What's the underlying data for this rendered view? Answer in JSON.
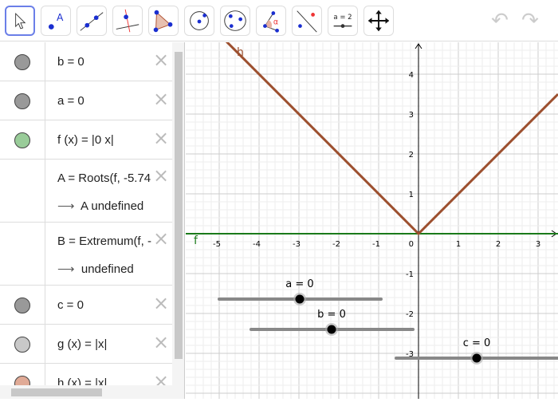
{
  "toolbar": {
    "tools": [
      {
        "name": "move-tool",
        "selected": true
      },
      {
        "name": "point-tool",
        "label": "A"
      },
      {
        "name": "line-tool"
      },
      {
        "name": "perpendicular-line-tool"
      },
      {
        "name": "polygon-tool"
      },
      {
        "name": "circle-center-point-tool"
      },
      {
        "name": "conic-tool"
      },
      {
        "name": "angle-tool",
        "label": "α"
      },
      {
        "name": "reflect-tool"
      },
      {
        "name": "slider-tool",
        "label": "a = 2"
      },
      {
        "name": "move-graphics-tool"
      }
    ],
    "undo": "↶",
    "redo": "↷"
  },
  "algebra": {
    "rows": [
      {
        "expr": "b = 0",
        "dot": "#999999"
      },
      {
        "expr": "a = 0",
        "dot": "#999999"
      },
      {
        "expr": "f (x)  =  |0 x|",
        "dot": "#99cc99"
      },
      {
        "expr": "A = Roots(f, -5.74",
        "result": "A undefined"
      },
      {
        "expr": "B = Extremum(f, -",
        "result": "undefined"
      },
      {
        "expr": "c = 0",
        "dot": "#999999"
      },
      {
        "expr": "g (x)  =  |x|",
        "dot": "#c8c8c8"
      },
      {
        "expr": "h (x)  =  |x|",
        "dot": "#e0aa96"
      }
    ],
    "arrow": "⟶"
  },
  "graph": {
    "xlim": [
      -5.7,
      3.5
    ],
    "ylim": [
      -4.14,
      4.76
    ],
    "x_ticks": [
      -5,
      -4,
      -3,
      -2,
      -1,
      1,
      2,
      3
    ],
    "y_ticks": [
      4,
      3,
      2,
      1,
      -1,
      -2,
      -3
    ],
    "origin_label": "0",
    "functions": [
      {
        "label": "h",
        "color": "#9c4f2e"
      },
      {
        "label": "f",
        "color": "#1a7a1a"
      }
    ],
    "sliders": [
      {
        "label": "a = 0",
        "value": 0
      },
      {
        "label": "b = 0",
        "value": 0
      },
      {
        "label": "c = 0",
        "value": 0
      }
    ]
  }
}
